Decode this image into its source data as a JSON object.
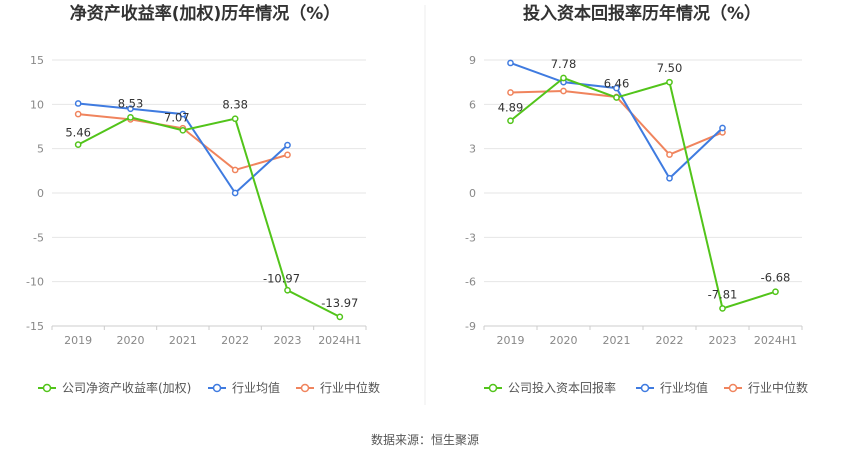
{
  "source_text": "数据来源：恒生聚源",
  "chart_data": [
    {
      "type": "line",
      "title": "净资产收益率(加权)历年情况（%）",
      "categories": [
        "2019",
        "2020",
        "2021",
        "2022",
        "2023",
        "2024H1"
      ],
      "ylim": [
        -15,
        15
      ],
      "yticks": [
        15,
        10,
        5,
        0,
        -5,
        -10,
        -15
      ],
      "grid": true,
      "legend_position": "bottom",
      "series": [
        {
          "name": "公司净资产收益率(加权)",
          "color": "#52c41a",
          "values": [
            5.46,
            8.53,
            7.07,
            8.38,
            -10.97,
            -13.97
          ],
          "labeled": true
        },
        {
          "name": "行业均值",
          "color": "#3f7be0",
          "values": [
            10.1,
            9.5,
            8.9,
            0.0,
            5.4,
            null
          ],
          "labeled": false
        },
        {
          "name": "行业中位数",
          "color": "#f0845d",
          "values": [
            8.9,
            8.3,
            7.3,
            2.6,
            4.3,
            null
          ],
          "labeled": false
        }
      ]
    },
    {
      "type": "line",
      "title": "投入资本回报率历年情况（%）",
      "categories": [
        "2019",
        "2020",
        "2021",
        "2022",
        "2023",
        "2024H1"
      ],
      "ylim": [
        -9,
        9
      ],
      "yticks": [
        9,
        6,
        3,
        0,
        -3,
        -6,
        -9
      ],
      "grid": true,
      "legend_position": "bottom",
      "series": [
        {
          "name": "公司投入资本回报率",
          "color": "#52c41a",
          "values": [
            4.89,
            7.78,
            6.46,
            7.5,
            -7.81,
            -6.68
          ],
          "labeled": true
        },
        {
          "name": "行业均值",
          "color": "#3f7be0",
          "values": [
            8.8,
            7.5,
            7.1,
            1.0,
            4.4,
            null
          ],
          "labeled": false
        },
        {
          "name": "行业中位数",
          "color": "#f0845d",
          "values": [
            6.8,
            6.9,
            6.5,
            2.6,
            4.1,
            null
          ],
          "labeled": false
        }
      ]
    }
  ]
}
